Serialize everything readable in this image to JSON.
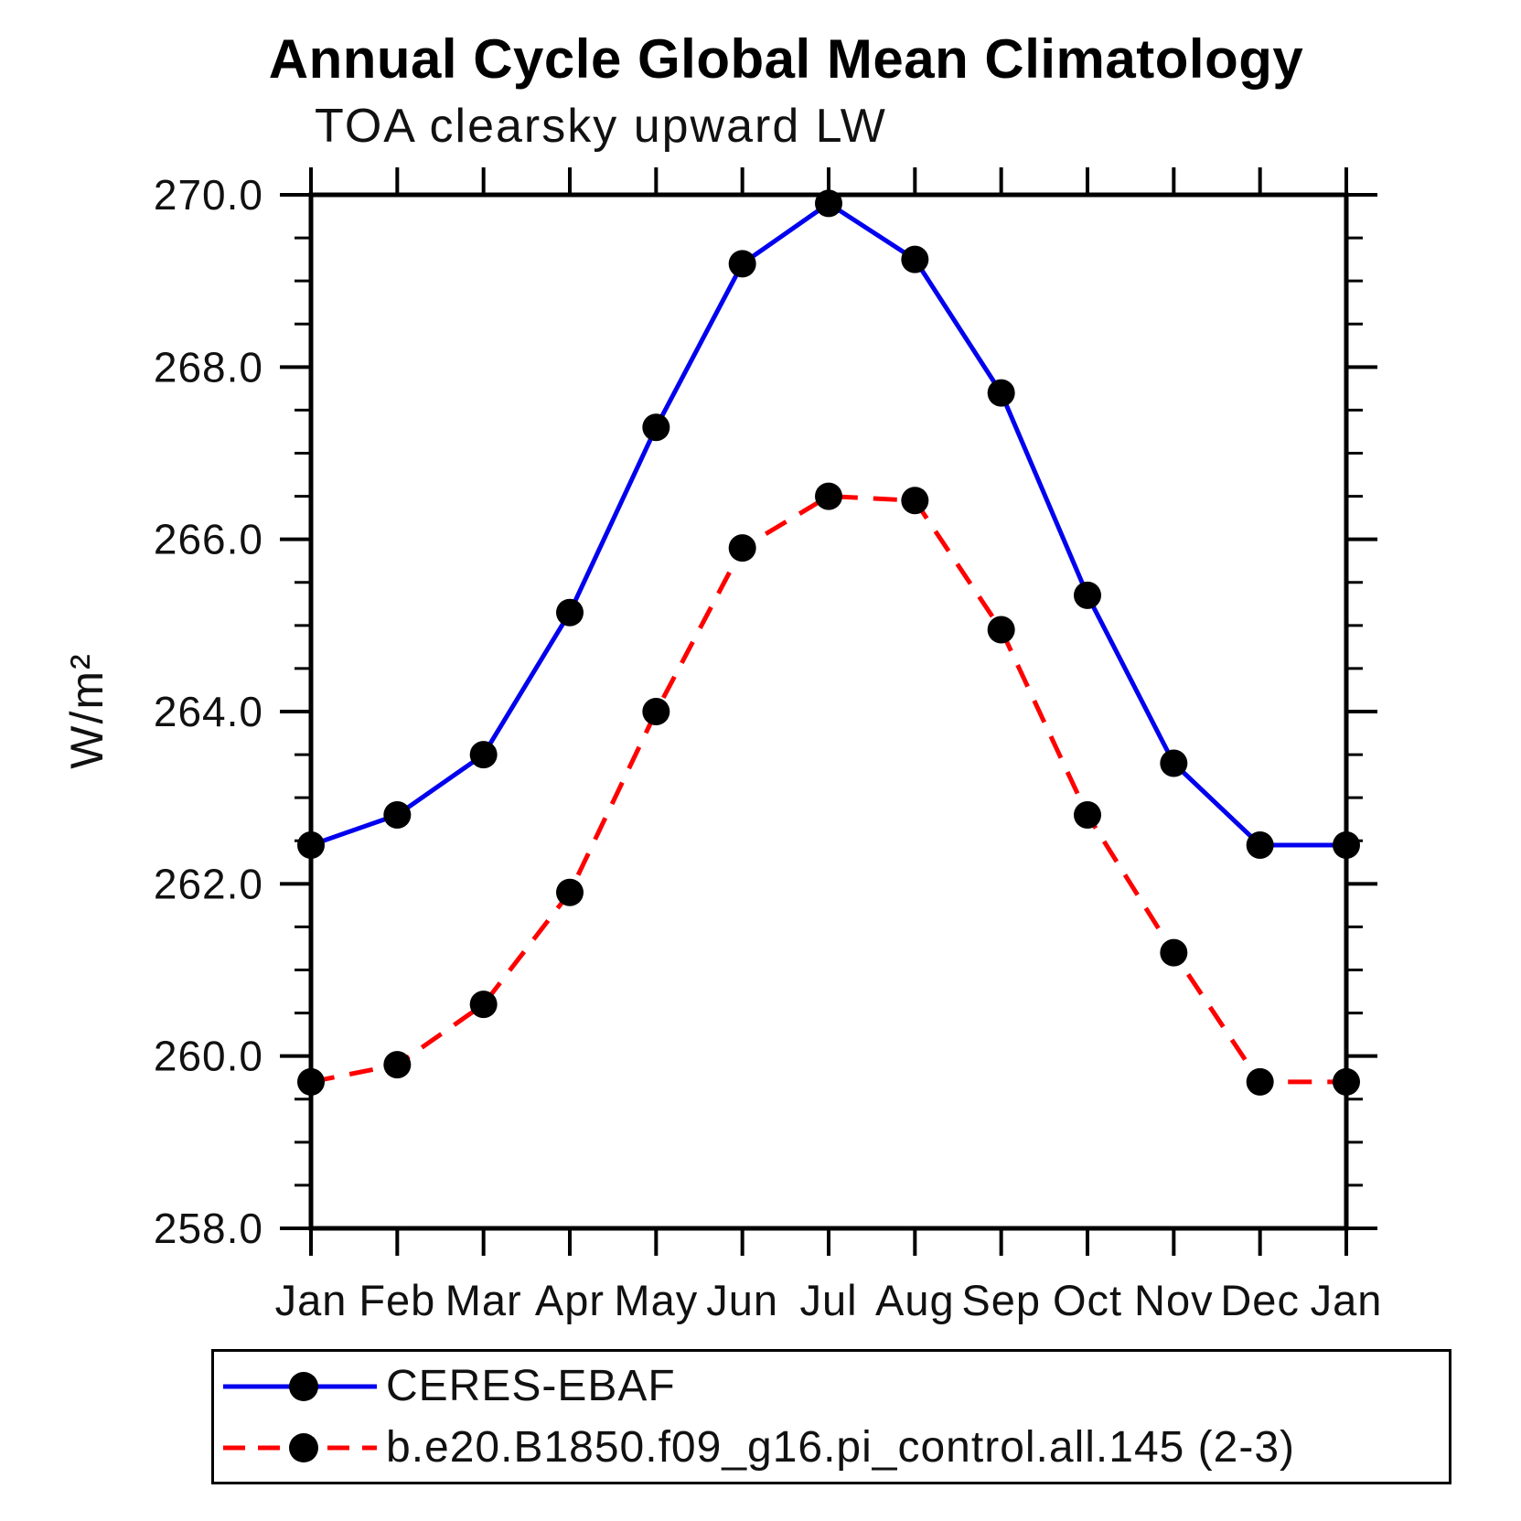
{
  "chart_data": {
    "type": "line",
    "title": "Annual Cycle Global Mean Climatology",
    "subtitle": "TOA clearsky upward LW",
    "ylabel": "W/m²",
    "xlabel": "",
    "categories": [
      "Jan",
      "Feb",
      "Mar",
      "Apr",
      "May",
      "Jun",
      "Jul",
      "Aug",
      "Sep",
      "Oct",
      "Nov",
      "Dec",
      "Jan"
    ],
    "ylim": [
      258.0,
      270.0
    ],
    "y_major_tick_labels": [
      "258.0",
      "260.0",
      "262.0",
      "264.0",
      "266.0",
      "268.0",
      "270.0"
    ],
    "y_major_step": 2.0,
    "y_minor_step": 0.5,
    "grid": "off",
    "frame_color": "#000000",
    "legend_position": "bottom",
    "series": [
      {
        "name": "CERES-EBAF",
        "color": "#0000ee",
        "line_style": "solid",
        "marker": "circle",
        "marker_color": "#000000",
        "values": [
          262.45,
          262.8,
          263.5,
          265.15,
          267.3,
          269.2,
          269.9,
          269.25,
          267.7,
          265.35,
          263.4,
          262.45,
          262.45
        ]
      },
      {
        "name": "b.e20.B1850.f09_g16.pi_control.all.145 (2-3)",
        "color": "#ff0000",
        "line_style": "dashed",
        "marker": "circle",
        "marker_color": "#000000",
        "values": [
          259.7,
          259.9,
          260.6,
          261.9,
          264.0,
          265.9,
          266.5,
          266.45,
          264.95,
          262.8,
          261.2,
          259.7,
          259.7
        ]
      }
    ]
  }
}
